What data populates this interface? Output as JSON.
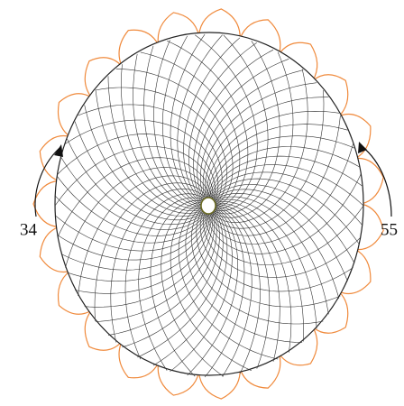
{
  "spirals": [
    {
      "count": 34
    },
    {
      "count": 55
    }
  ]
}
